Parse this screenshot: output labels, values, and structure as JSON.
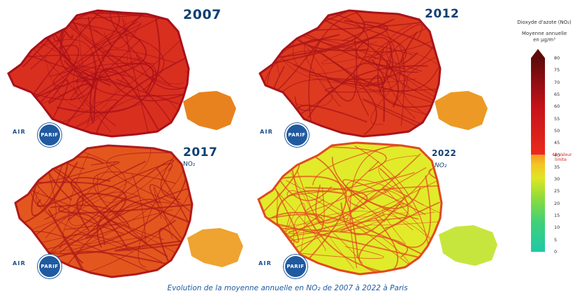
{
  "panels": [
    {
      "year": "2007",
      "sub": "",
      "fill": "#d92f1f",
      "fill2": "#e8821f",
      "road": "#a8101a"
    },
    {
      "year": "2012",
      "sub": "",
      "fill": "#de3a1f",
      "fill2": "#ec9a25",
      "road": "#a8141a"
    },
    {
      "year": "2017",
      "sub": "NO₂",
      "fill": "#e3571e",
      "fill2": "#efa330",
      "road": "#b01a1a"
    },
    {
      "year": "2022",
      "sub": "NO₂",
      "fill": "#e1eb2a",
      "fill2": "#c7e63d",
      "road": "#e04a20"
    }
  ],
  "logo": {
    "text": "AIR",
    "circle_text": "PARIF"
  },
  "legend": {
    "title": "Dioxyde d'azote (NO₂)",
    "subtitle_line1": "Moyenne annuelle",
    "subtitle_line2": "en µg/m³",
    "ticks": [
      "80",
      "75",
      "70",
      "65",
      "60",
      "55",
      "50",
      "45",
      "40",
      "35",
      "30",
      "25",
      "20",
      "15",
      "10",
      "5",
      "0"
    ],
    "limit_label_line1": "40 Valeur",
    "limit_label_line2": "limite",
    "min": 0,
    "max": 80,
    "limit": 40
  },
  "caption": "Evolution de la moyenne annuelle en NO₂ de 2007 à 2022 à Paris"
}
